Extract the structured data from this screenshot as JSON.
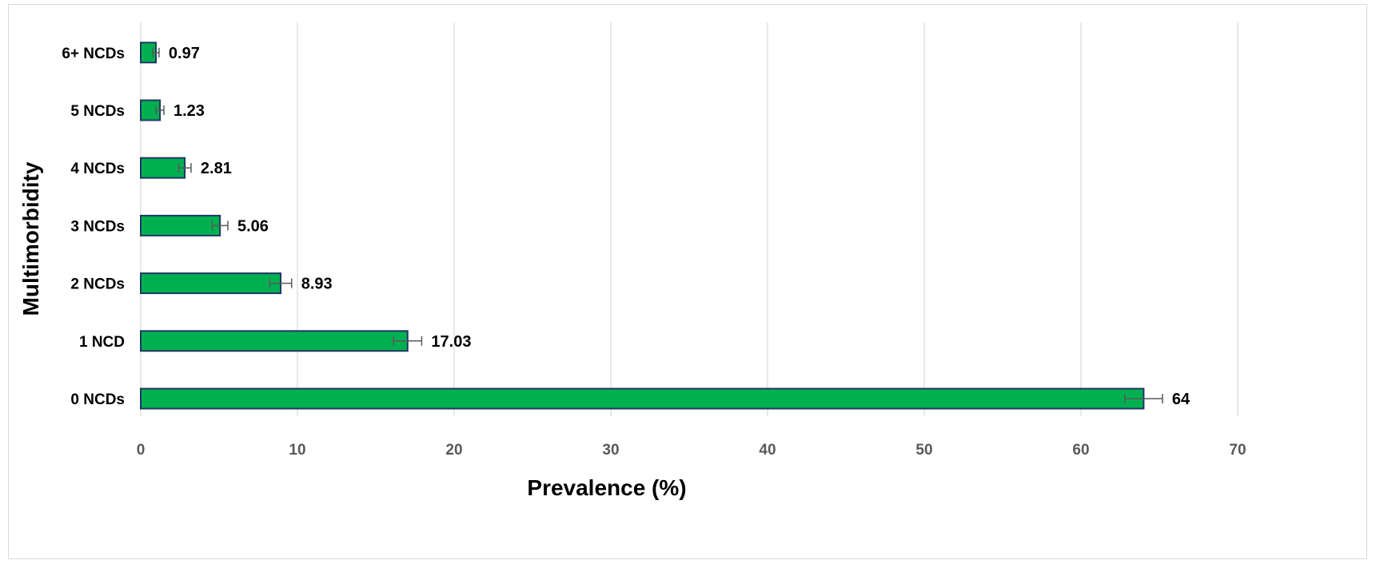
{
  "chart_data": {
    "type": "bar",
    "orientation": "horizontal",
    "categories": [
      "0 NCDs",
      "1 NCD",
      "2 NCDs",
      "3 NCDs",
      "4 NCDs",
      "5 NCDs",
      "6+ NCDs"
    ],
    "values": [
      64,
      17.03,
      8.93,
      5.06,
      2.81,
      1.23,
      0.97
    ],
    "data_labels": [
      "64",
      "17.03",
      "8.93",
      "5.06",
      "2.81",
      "1.23",
      "0.97"
    ],
    "error": [
      1.2,
      0.9,
      0.7,
      0.5,
      0.4,
      0.25,
      0.2
    ],
    "xlabel": "Prevalence (%)",
    "ylabel": "Multimorbidity",
    "xlim": [
      0,
      70
    ],
    "xticks": [
      0,
      10,
      20,
      30,
      40,
      50,
      60,
      70
    ],
    "grid": "vertical",
    "legend": "none",
    "colors": {
      "bar_fill": "#00b050",
      "bar_stroke": "#1f3864",
      "grid": "#d9d9d9",
      "error_bar": "#595959"
    }
  }
}
